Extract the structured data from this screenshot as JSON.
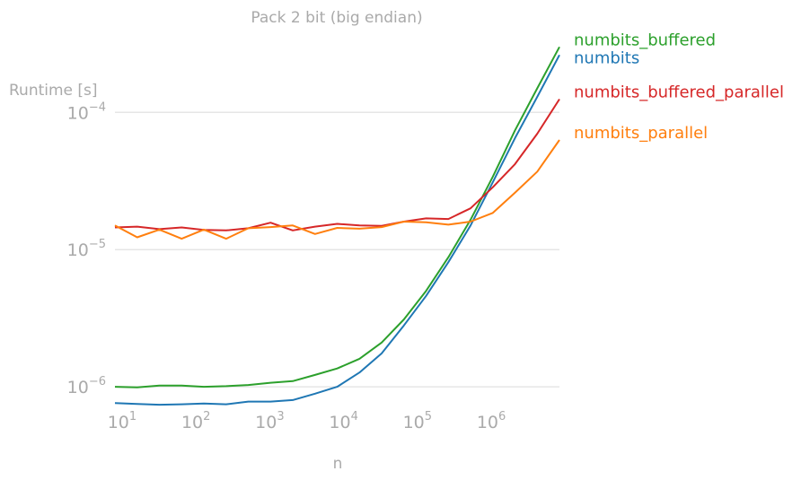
{
  "chart_data": {
    "type": "line",
    "title": "Pack 2 bit (big endian)",
    "xlabel": "n",
    "ylabel": "Runtime [s]",
    "x_scale": "log",
    "y_scale": "log",
    "xlim": [
      8,
      8388608
    ],
    "ylim": [
      7.3e-07,
      0.00042
    ],
    "grid": "y-major",
    "legend": "right, at line ends",
    "x_ticks": [
      {
        "base": "10",
        "exp": "1",
        "value": 10
      },
      {
        "base": "10",
        "exp": "2",
        "value": 100
      },
      {
        "base": "10",
        "exp": "3",
        "value": 1000
      },
      {
        "base": "10",
        "exp": "4",
        "value": 10000
      },
      {
        "base": "10",
        "exp": "5",
        "value": 100000
      },
      {
        "base": "10",
        "exp": "6",
        "value": 1000000
      }
    ],
    "y_ticks": [
      {
        "base": "10",
        "exp": "−6",
        "value": 1e-06
      },
      {
        "base": "10",
        "exp": "−5",
        "value": 1e-05
      },
      {
        "base": "10",
        "exp": "−4",
        "value": 0.0001
      }
    ],
    "x": [
      8,
      16,
      32,
      64,
      128,
      256,
      512,
      1024,
      2048,
      4096,
      8192,
      16384,
      32768,
      65536,
      131072,
      262144,
      524288,
      1048576,
      2097152,
      4194304,
      8388608
    ],
    "series": [
      {
        "name": "numbits_buffered",
        "color": "#2ca02c",
        "values": [
          1e-06,
          9.9e-07,
          1.02e-06,
          1.02e-06,
          1e-06,
          1.01e-06,
          1.03e-06,
          1.07e-06,
          1.1e-06,
          1.22e-06,
          1.36e-06,
          1.6e-06,
          2.1e-06,
          3.1e-06,
          5e-06,
          8.8e-06,
          1.65e-05,
          3.4e-05,
          7.4e-05,
          0.00015,
          0.0003
        ]
      },
      {
        "name": "numbits",
        "color": "#1f77b4",
        "values": [
          7.6e-07,
          7.5e-07,
          7.4e-07,
          7.45e-07,
          7.55e-07,
          7.45e-07,
          7.8e-07,
          7.8e-07,
          8e-07,
          8.9e-07,
          1e-06,
          1.27e-06,
          1.75e-06,
          2.8e-06,
          4.6e-06,
          8.1e-06,
          1.5e-05,
          3.1e-05,
          6.5e-05,
          0.00013,
          0.000262
        ]
      },
      {
        "name": "numbits_buffered_parallel",
        "color": "#d62728",
        "values": [
          1.45e-05,
          1.47e-05,
          1.41e-05,
          1.45e-05,
          1.39e-05,
          1.38e-05,
          1.43e-05,
          1.57e-05,
          1.38e-05,
          1.47e-05,
          1.54e-05,
          1.5e-05,
          1.49e-05,
          1.6e-05,
          1.69e-05,
          1.67e-05,
          2e-05,
          2.85e-05,
          4.2e-05,
          7e-05,
          0.000125
        ]
      },
      {
        "name": "numbits_parallel",
        "color": "#ff7f0e",
        "values": [
          1.5e-05,
          1.23e-05,
          1.4e-05,
          1.2e-05,
          1.4e-05,
          1.2e-05,
          1.43e-05,
          1.46e-05,
          1.5e-05,
          1.3e-05,
          1.44e-05,
          1.42e-05,
          1.46e-05,
          1.6e-05,
          1.58e-05,
          1.52e-05,
          1.6e-05,
          1.85e-05,
          2.6e-05,
          3.7e-05,
          6.3e-05
        ]
      }
    ]
  }
}
